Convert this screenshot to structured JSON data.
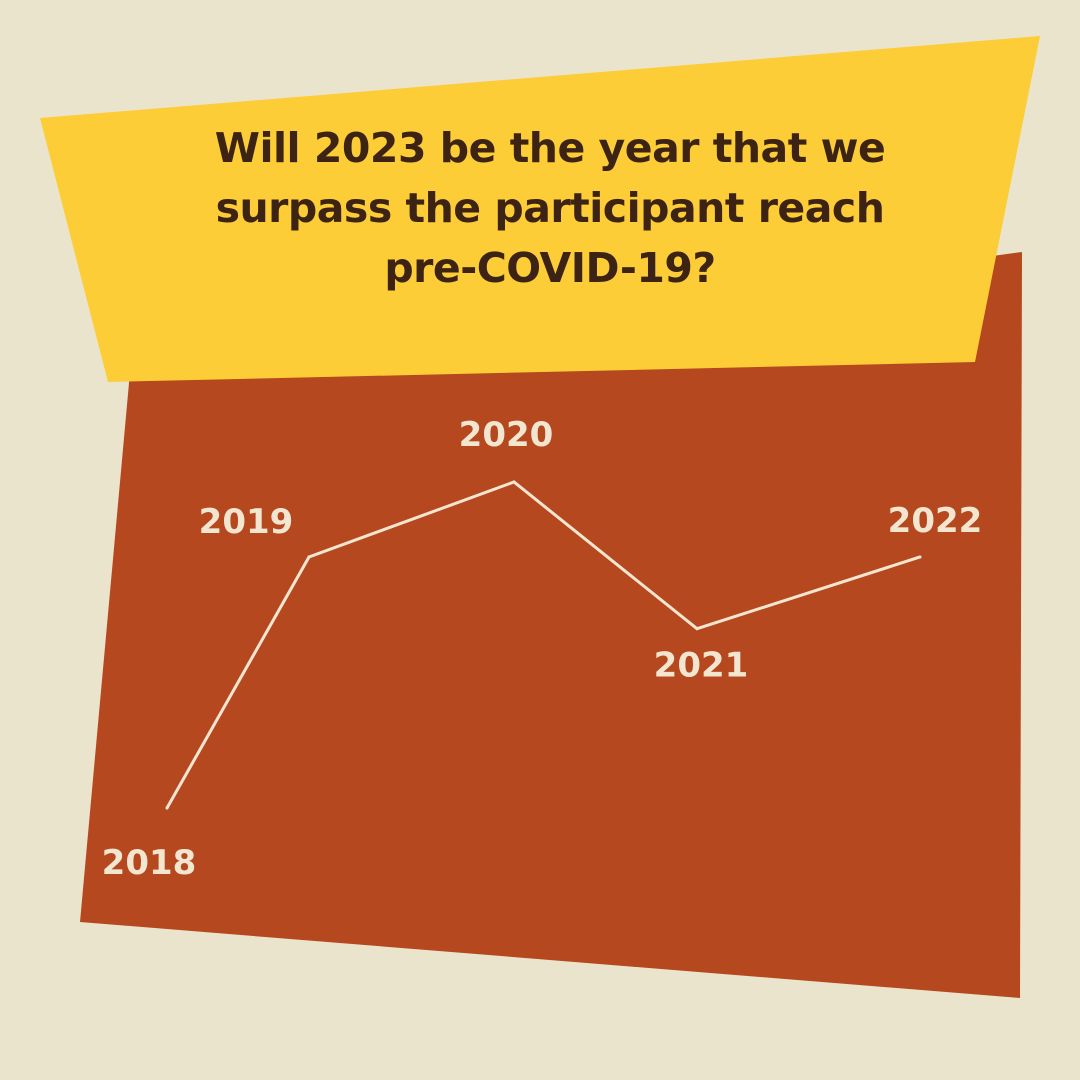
{
  "headline": {
    "line1": "Will 2023 be the year that we",
    "line2": "surpass the participant reach",
    "line3": "pre-COVID-19?"
  },
  "colors": {
    "background": "#ebe4cc",
    "panel": "#b6481f",
    "banner": "#fccd36",
    "text_dark": "#3d2314",
    "line": "#f3e6d0"
  },
  "chart_data": {
    "type": "line",
    "title": "Will 2023 be the year that we surpass the participant reach pre-COVID-19?",
    "xlabel": "",
    "ylabel": "",
    "grid": false,
    "legend": "none",
    "y_axis_shown": false,
    "x": [
      "2018",
      "2019",
      "2020",
      "2021",
      "2022"
    ],
    "values": [
      0.0,
      0.77,
      1.0,
      0.55,
      0.77
    ],
    "value_scale": "relative (no axis printed)",
    "labels": [
      "2018",
      "2019",
      "2020",
      "2021",
      "2022"
    ]
  }
}
